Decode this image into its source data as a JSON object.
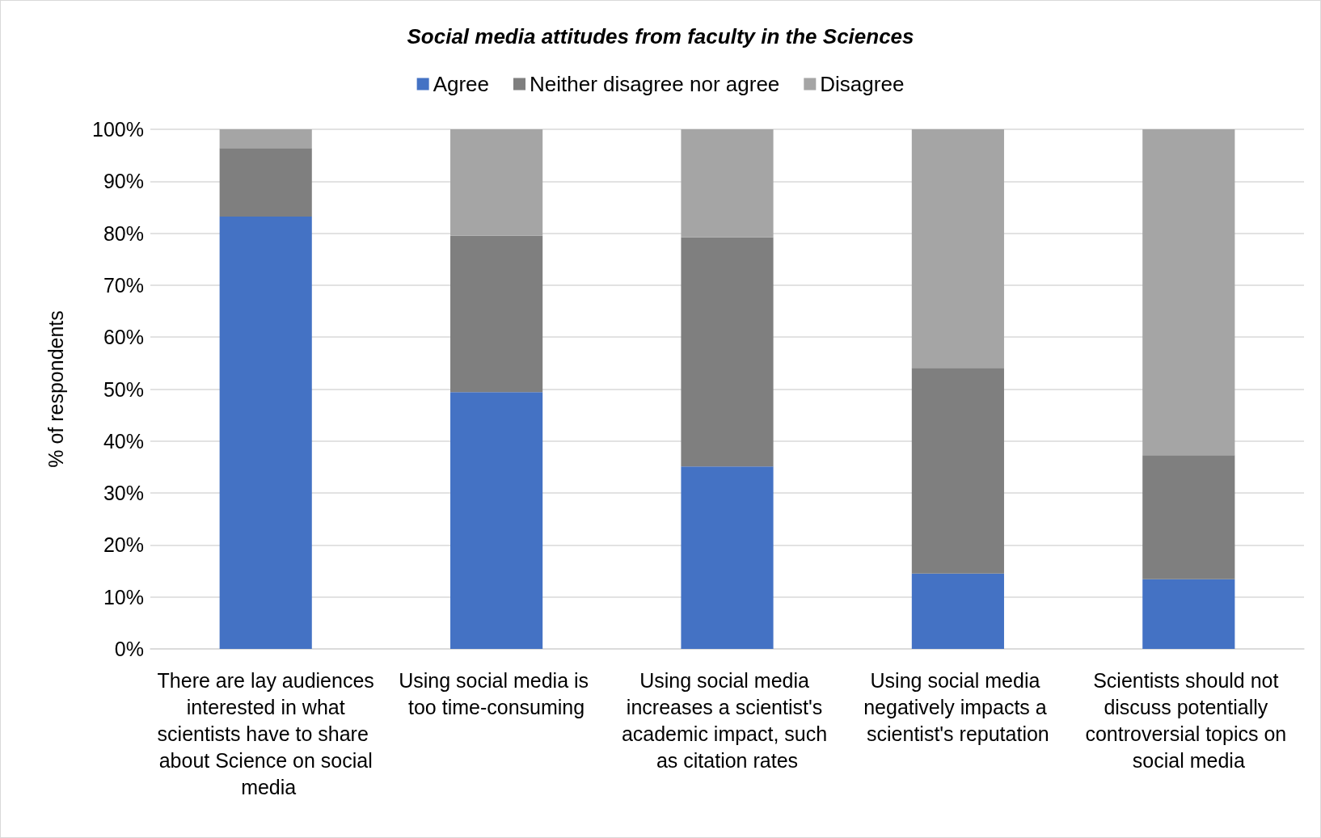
{
  "chart_data": {
    "type": "bar",
    "stacked": true,
    "title": "Social media attitudes from faculty in the Sciences",
    "ylabel": "% of respondents",
    "categories": [
      "There are lay audiences interested in what scientists have to share about Science on social media",
      "Using social media is too time-consuming",
      "Using social media increases a scientist's academic impact, such as citation rates",
      "Using social media negatively impacts a scientist's reputation",
      "Scientists should not discuss potentially controversial topics on social media"
    ],
    "series": [
      {
        "name": "Agree",
        "color": "#4472c4",
        "values": [
          83.2,
          49.4,
          35.1,
          14.5,
          13.4
        ]
      },
      {
        "name": "Neither disagree nor agree",
        "color": "#7f7f7f",
        "values": [
          13.2,
          30.1,
          44.1,
          39.6,
          23.9
        ]
      },
      {
        "name": "Disagree",
        "color": "#a5a5a5",
        "values": [
          3.6,
          20.5,
          20.8,
          45.9,
          62.7
        ]
      }
    ],
    "ylim": [
      0,
      100
    ],
    "yticks": [
      {
        "value": 0,
        "label": "0%"
      },
      {
        "value": 10,
        "label": "10%"
      },
      {
        "value": 20,
        "label": "20%"
      },
      {
        "value": 30,
        "label": "30%"
      },
      {
        "value": 40,
        "label": "40%"
      },
      {
        "value": 50,
        "label": "50%"
      },
      {
        "value": 60,
        "label": "60%"
      },
      {
        "value": 70,
        "label": "70%"
      },
      {
        "value": 80,
        "label": "80%"
      },
      {
        "value": 90,
        "label": "90%"
      },
      {
        "value": 100,
        "label": "100%"
      }
    ],
    "grid": "y",
    "legend": "top"
  }
}
